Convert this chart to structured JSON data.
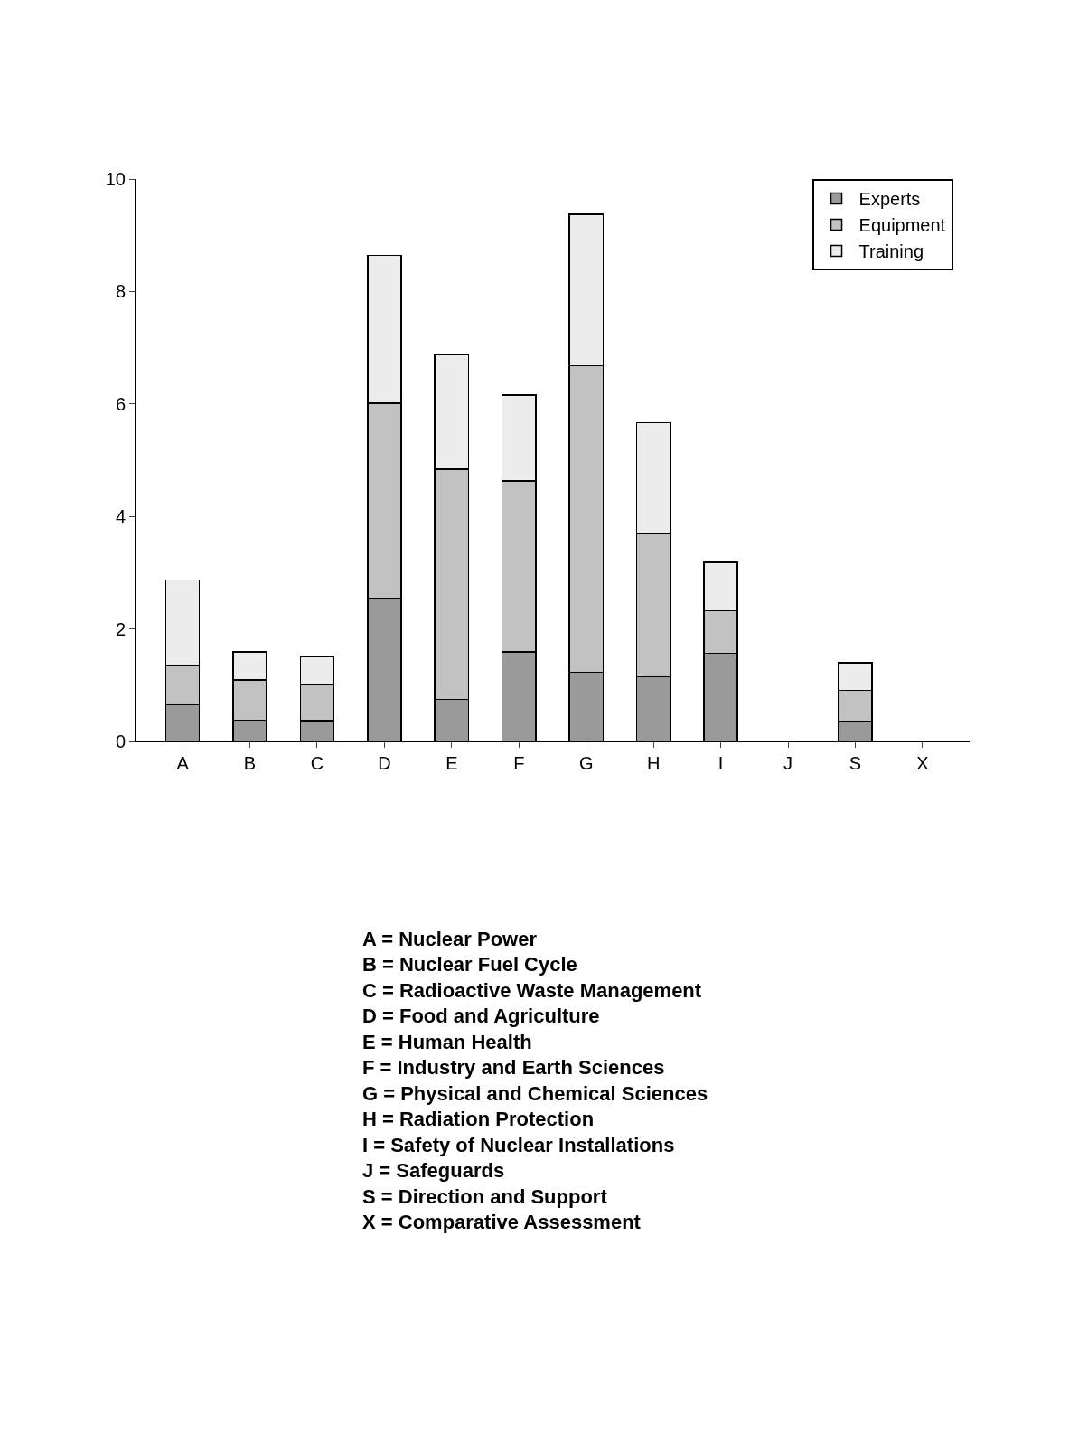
{
  "chart_data": {
    "type": "bar",
    "stacked": true,
    "categories": [
      "A",
      "B",
      "C",
      "D",
      "E",
      "F",
      "G",
      "H",
      "I",
      "J",
      "S",
      "X"
    ],
    "series": [
      {
        "name": "Experts",
        "color": "#9a9a9a",
        "values": [
          0.65,
          0.38,
          0.37,
          2.55,
          0.75,
          1.59,
          1.23,
          1.15,
          1.57,
          0,
          0.35,
          0
        ]
      },
      {
        "name": "Equipment",
        "color": "#c2c2c2",
        "values": [
          0.7,
          0.71,
          0.64,
          3.46,
          4.09,
          3.04,
          5.45,
          2.55,
          0.75,
          0,
          0.56,
          0
        ]
      },
      {
        "name": "Training",
        "color": "#ececec",
        "values": [
          1.52,
          0.5,
          0.49,
          2.63,
          2.03,
          1.53,
          2.69,
          1.97,
          0.86,
          0,
          0.49,
          0
        ]
      }
    ],
    "ylim": [
      0,
      10
    ],
    "yticks": [
      0,
      2,
      4,
      6,
      8,
      10
    ],
    "legend": "top right",
    "annotations": [
      "A = Nuclear Power",
      "B = Nuclear Fuel Cycle",
      "C = Radioactive Waste Management",
      "D = Food and Agriculture",
      "E = Human Health",
      "F = Industry and Earth Sciences",
      "G = Physical and Chemical Sciences",
      "H = Radiation Protection",
      "I = Safety of Nuclear Installations",
      "J = Safeguards",
      "S = Direction and Support",
      "X = Comparative Assessment"
    ]
  }
}
